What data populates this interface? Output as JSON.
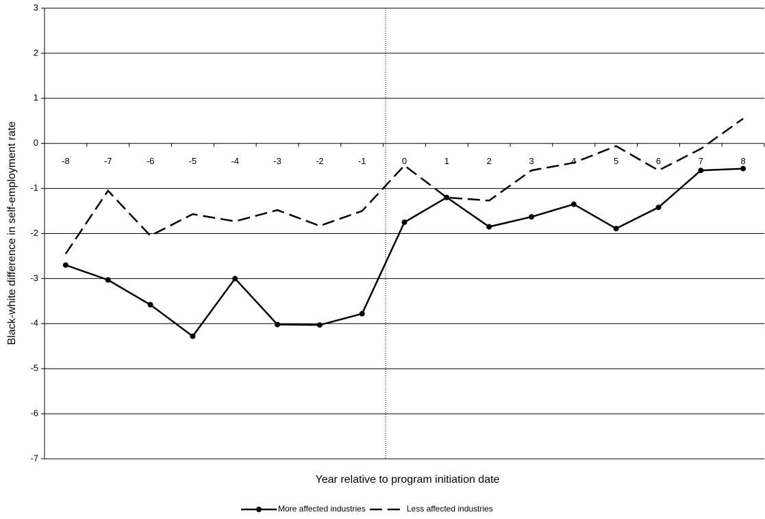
{
  "chart_data": {
    "type": "line",
    "xlabel": "Year relative to program initiation date",
    "ylabel": "Black-white difference in self-employment rate",
    "categories": [
      -8,
      -7,
      -6,
      -5,
      -4,
      -3,
      -2,
      -1,
      0,
      1,
      2,
      3,
      4,
      5,
      6,
      7,
      8
    ],
    "series": [
      {
        "name": "More affected industries",
        "color": "#000000",
        "line_style": "solid",
        "marker": "circle",
        "values": [
          -2.7,
          -3.03,
          -3.58,
          -4.28,
          -3.0,
          -4.02,
          -4.03,
          -3.78,
          -1.75,
          -1.2,
          -1.85,
          -1.63,
          -1.35,
          -1.89,
          -1.42,
          -0.6,
          -0.56
        ]
      },
      {
        "name": "Less affected industries",
        "color": "#000000",
        "line_style": "dashed",
        "marker": "none",
        "values": [
          -2.45,
          -1.05,
          -2.05,
          -1.57,
          -1.73,
          -1.48,
          -1.83,
          -1.5,
          -0.49,
          -1.2,
          -1.27,
          -0.6,
          -0.43,
          -0.06,
          -0.6,
          -0.12,
          0.55
        ]
      }
    ],
    "ylim": [
      -7,
      3
    ],
    "yticks": [
      -7,
      -6,
      -5,
      -4,
      -3,
      -2,
      -1,
      0,
      1,
      2,
      3
    ],
    "grid": true
  }
}
